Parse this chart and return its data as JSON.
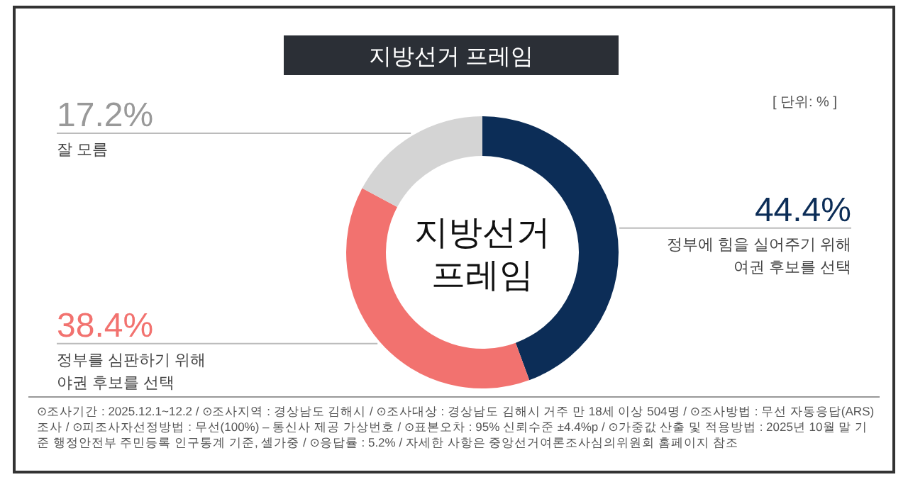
{
  "chart_data": {
    "type": "donut",
    "title": "지방선거 프레임",
    "subtitle": "[ 단위: % ]",
    "categories": [
      "정부에 힘을 실어주기 위해\n여권 후보를 선택",
      "정부를 심판하기 위해\n야권 후보를 선택",
      "잘 모름"
    ],
    "values": [
      44.4,
      38.4,
      17.2
    ],
    "colors": [
      "#0c2d57",
      "#f2726f",
      "#d4d4d4"
    ],
    "value_labels": [
      "44.4%",
      "38.4%",
      "17.2%"
    ],
    "annotations": [
      "지방선거\n프레임",
      "⊙조사기간 : 2025.12.1~12.2 / ⊙조사지역 : 경상남도 김해시 / ⊙조사대상 : 경상남도 김해시 거주 만 18세 이상 504명 / ⊙조사방법 : 무선 자동응답(ARS) 조사 / ⊙피조사자선정방법 : 무선(100%) – 통신사 제공 가상번호 / ⊙표본오차 : 95% 신뢰수준 ±4.4%p / ⊙가중값 산출 및 적용방법 : 2025년 10월 말 기준 행정안전부 주민등록 인구통계 기준, 셀가중 / ⊙응답률 : 5.2% / 자세한 사항은 중앙선거여론조사심의위원회 홈페이지 참조"
    ]
  }
}
